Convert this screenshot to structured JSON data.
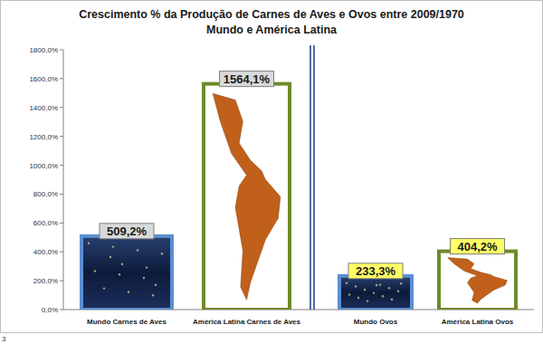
{
  "chart_data": {
    "type": "bar",
    "title": "Crescimento % da Produção de Carnes de Aves e Ovos entre 2009/1970",
    "subtitle": "Mundo e América Latina",
    "categories": [
      "Mundo Carnes de Aves",
      "América Latina Carnes de Aves",
      "Mundo Ovos",
      "América Latina Ovos"
    ],
    "values": [
      509.2,
      1564.1,
      233.3,
      404.2
    ],
    "value_labels": [
      "509,2%",
      "1564,1%",
      "233,3%",
      "404,2%"
    ],
    "colors": [
      "#1c2f5c",
      "#ffffff",
      "#1c2f5c",
      "#ffffff"
    ],
    "data_labels": true,
    "grid": false,
    "ylim": [
      0,
      1800
    ],
    "yticks": [
      {
        "value": 0,
        "label": "0,0%"
      },
      {
        "value": 200,
        "label": "200,0%"
      },
      {
        "value": 400,
        "label": "400,0%"
      },
      {
        "value": 600,
        "label": "600,0%"
      },
      {
        "value": 800,
        "label": "800,0%"
      },
      {
        "value": 1000,
        "label": "1000,0%"
      },
      {
        "value": 1200,
        "label": "1200,0%"
      },
      {
        "value": 1400,
        "label": "1400,0%"
      },
      {
        "value": 1600,
        "label": "1600,0%"
      },
      {
        "value": 1800,
        "label": "1800,0%"
      }
    ],
    "annotations": [
      "3"
    ]
  }
}
